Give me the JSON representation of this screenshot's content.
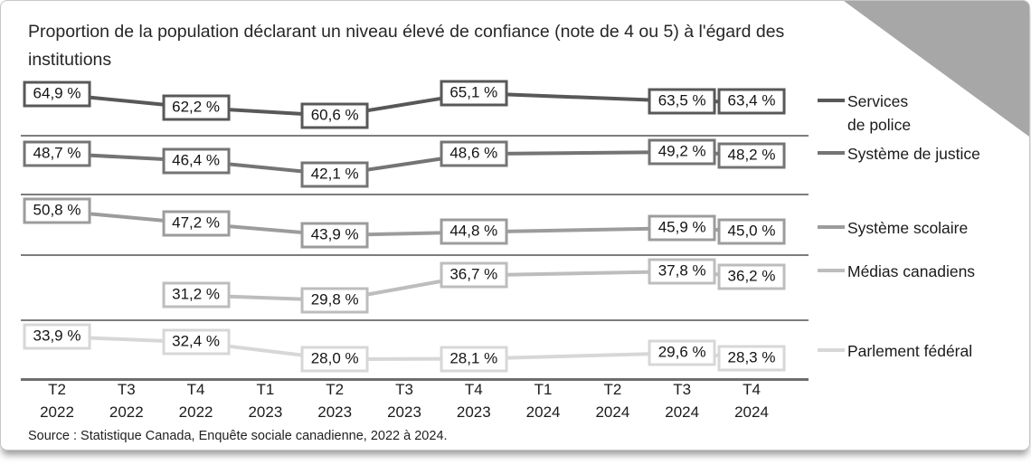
{
  "title": "Proportion de la population déclarant un niveau élevé de confiance (note de 4 ou 5) à l'égard des institutions",
  "source": "Source : Statistique Canada, Enquête sociale canadienne, 2022 à 2024.",
  "colors": {
    "card_border": "#c6c6c6",
    "corner_triangle": "#a7a7a7",
    "band_separator": "#7d7d7d",
    "axis_line": "#6e6e6e",
    "value_text": "#141414"
  },
  "chart_data": {
    "type": "line",
    "title": "Proportion de la population déclarant un niveau élevé de confiance (note de 4 ou 5) à l'égard des institutions",
    "x_categories": [
      {
        "quarter": "T2",
        "year": "2022"
      },
      {
        "quarter": "T3",
        "year": "2022"
      },
      {
        "quarter": "T4",
        "year": "2022"
      },
      {
        "quarter": "T1",
        "year": "2023"
      },
      {
        "quarter": "T2",
        "year": "2023"
      },
      {
        "quarter": "T3",
        "year": "2023"
      },
      {
        "quarter": "T4",
        "year": "2023"
      },
      {
        "quarter": "T1",
        "year": "2024"
      },
      {
        "quarter": "T2",
        "year": "2024"
      },
      {
        "quarter": "T3",
        "year": "2024"
      },
      {
        "quarter": "T4",
        "year": "2024"
      }
    ],
    "value_unit": "%",
    "value_label_style": "french_comma_percent",
    "legend_position": "right",
    "layout": "small_multiples_stacked_bands",
    "series": [
      {
        "name": "Services de police",
        "legend_lines": [
          "Services",
          "de police"
        ],
        "color": "#585858",
        "points": [
          {
            "x": 0,
            "value": 64.9
          },
          {
            "x": 2,
            "value": 62.2
          },
          {
            "x": 4,
            "value": 60.6
          },
          {
            "x": 6,
            "value": 65.1
          },
          {
            "x": 9,
            "value": 63.5
          },
          {
            "x": 10,
            "value": 63.4
          }
        ]
      },
      {
        "name": "Système de justice",
        "legend_lines": [
          "Système de justice"
        ],
        "color": "#747474",
        "points": [
          {
            "x": 0,
            "value": 48.7
          },
          {
            "x": 2,
            "value": 46.4
          },
          {
            "x": 4,
            "value": 42.1
          },
          {
            "x": 6,
            "value": 48.6
          },
          {
            "x": 9,
            "value": 49.2
          },
          {
            "x": 10,
            "value": 48.2
          }
        ]
      },
      {
        "name": "Système scolaire",
        "legend_lines": [
          "Système scolaire"
        ],
        "color": "#9c9c9c",
        "points": [
          {
            "x": 0,
            "value": 50.8
          },
          {
            "x": 2,
            "value": 47.2
          },
          {
            "x": 4,
            "value": 43.9
          },
          {
            "x": 6,
            "value": 44.8
          },
          {
            "x": 9,
            "value": 45.9
          },
          {
            "x": 10,
            "value": 45.0
          }
        ]
      },
      {
        "name": "Médias canadiens",
        "legend_lines": [
          "Médias canadiens"
        ],
        "color": "#bdbdbd",
        "points": [
          {
            "x": 2,
            "value": 31.2
          },
          {
            "x": 4,
            "value": 29.8
          },
          {
            "x": 6,
            "value": 36.7
          },
          {
            "x": 9,
            "value": 37.8
          },
          {
            "x": 10,
            "value": 36.2
          }
        ]
      },
      {
        "name": "Parlement fédéral",
        "legend_lines": [
          "Parlement fédéral"
        ],
        "color": "#d7d7d7",
        "points": [
          {
            "x": 0,
            "value": 33.9
          },
          {
            "x": 2,
            "value": 32.4
          },
          {
            "x": 4,
            "value": 28.0
          },
          {
            "x": 6,
            "value": 28.1
          },
          {
            "x": 9,
            "value": 29.6
          },
          {
            "x": 10,
            "value": 28.3
          }
        ]
      }
    ]
  }
}
